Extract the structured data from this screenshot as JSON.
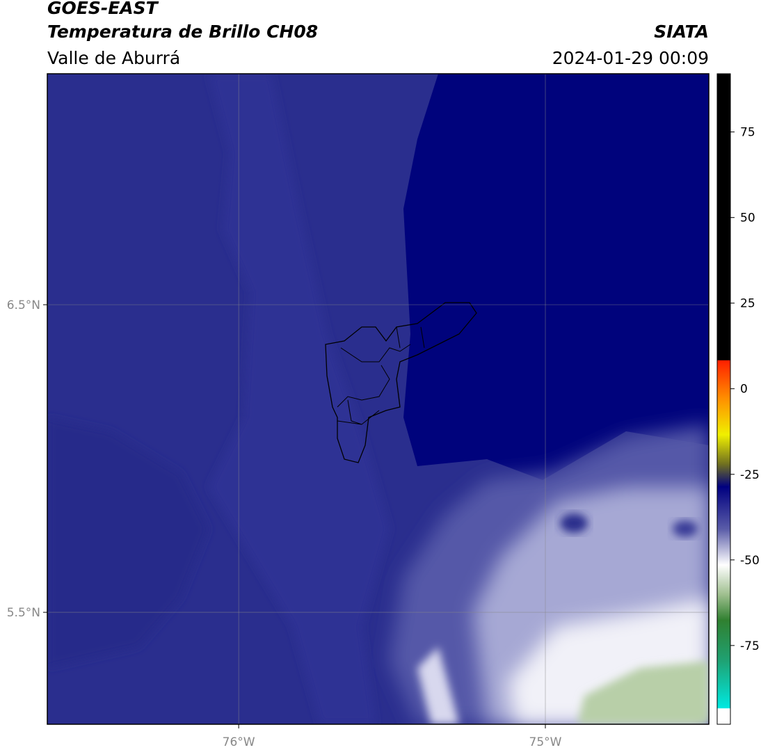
{
  "header": {
    "title": "GOES-EAST",
    "subtitle": "Temperatura de Brillo CH08",
    "region": "Valle de Aburrá",
    "source": "SIATA",
    "datetime": "2024-01-29 00:09"
  },
  "map": {
    "lon_range": [
      -76.624,
      -74.467
    ],
    "lat_range": [
      5.136,
      7.251
    ],
    "lat_lines": [
      {
        "value": 6.5,
        "label": "6.5°N"
      },
      {
        "value": 5.5,
        "label": "5.5°N"
      }
    ],
    "lon_lines": [
      {
        "value": -76,
        "label": "76°W"
      },
      {
        "value": -75,
        "label": "75°W"
      }
    ]
  },
  "colorbar": {
    "range": [
      -98,
      92
    ],
    "ticks": [
      75,
      50,
      25,
      0,
      -25,
      -50,
      -75
    ]
  }
}
